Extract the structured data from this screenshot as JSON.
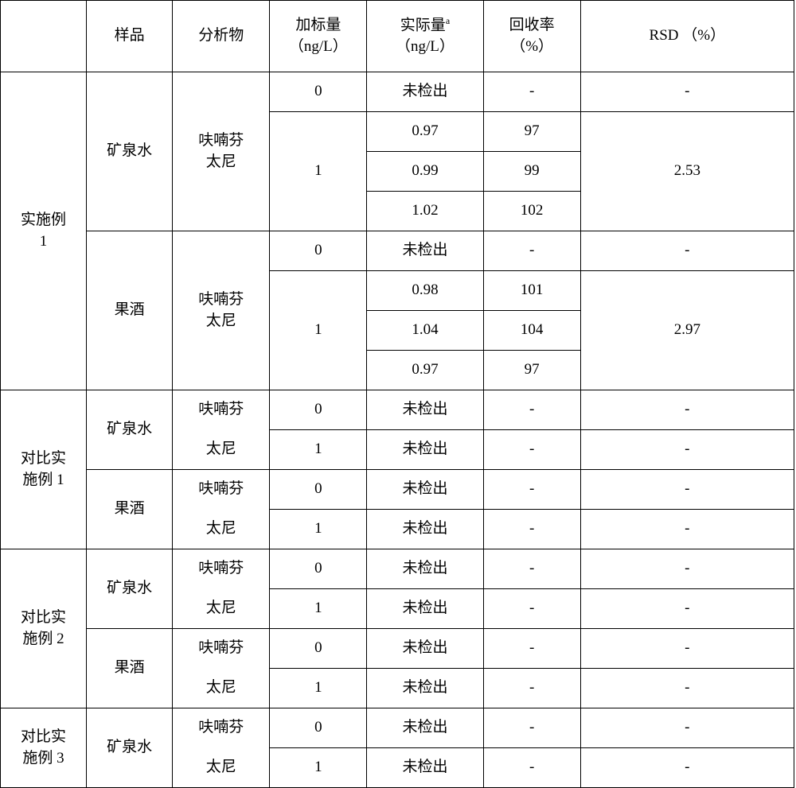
{
  "headers": {
    "blank": "",
    "sample": "样品",
    "analyte": "分析物",
    "spike_line1": "加标量",
    "spike_line2": "（ng/L）",
    "actual_line1": "实际量",
    "actual_sup": "a",
    "actual_line2": "（ng/L）",
    "recovery_line1": "回收率",
    "recovery_line2": "（%）",
    "rsd": "RSD （%）"
  },
  "example1": {
    "label1": "实施例",
    "label2": "1",
    "sample1": "矿泉水",
    "sample2": "果酒",
    "analyte1": "呋喃芬",
    "analyte2": "太尼",
    "spike0": "0",
    "spike1": "1",
    "not_detected": "未检出",
    "mineral": {
      "val1": "0.97",
      "val2": "0.99",
      "val3": "1.02",
      "rec1": "97",
      "rec2": "99",
      "rec3": "102",
      "rsd": "2.53"
    },
    "wine": {
      "val1": "0.98",
      "val2": "1.04",
      "val3": "0.97",
      "rec1": "101",
      "rec2": "104",
      "rec3": "97",
      "rsd": "2.97"
    }
  },
  "comp1": {
    "label1": "对比实",
    "label2": "施例 1",
    "sample1": "矿泉水",
    "sample2": "果酒",
    "analyte1": "呋喃芬",
    "analyte2": "太尼",
    "spike0": "0",
    "spike1": "1",
    "not_detected": "未检出",
    "dash": "-"
  },
  "comp2": {
    "label1": "对比实",
    "label2": "施例 2",
    "sample1": "矿泉水",
    "sample2": "果酒",
    "analyte1": "呋喃芬",
    "analyte2": "太尼",
    "spike0": "0",
    "spike1": "1",
    "not_detected": "未检出",
    "dash": "-"
  },
  "comp3": {
    "label1": "对比实",
    "label2": "施例 3",
    "sample1": "矿泉水",
    "analyte1": "呋喃芬",
    "analyte2": "太尼",
    "spike0": "0",
    "spike1": "1",
    "not_detected": "未检出",
    "dash": "-"
  },
  "dash": "-"
}
